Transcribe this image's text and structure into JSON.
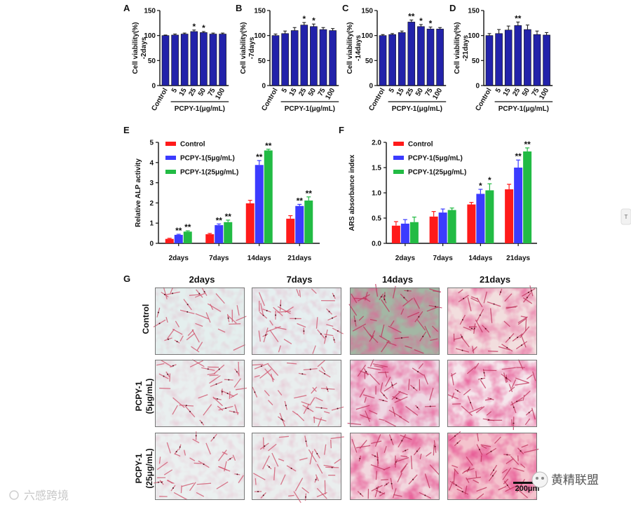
{
  "chart_data": [
    {
      "type": "bar",
      "panel_label": "A",
      "categories": [
        "Control",
        "5",
        "15",
        "25",
        "50",
        "75",
        "100"
      ],
      "values": [
        100,
        101,
        103,
        108,
        106,
        103,
        103
      ],
      "errors": [
        1,
        2,
        2,
        3,
        2,
        2,
        2
      ],
      "significance": [
        "",
        "",
        "",
        "*",
        "*",
        "",
        ""
      ],
      "ylabel": "Cell viability(%)\n-2days",
      "xlabel": "PCPY-1(μg/mL)",
      "ylim": [
        0,
        150
      ],
      "yticks": [
        "0",
        "50",
        "100",
        "150"
      ]
    },
    {
      "type": "bar",
      "panel_label": "B",
      "categories": [
        "Control",
        "5",
        "15",
        "25",
        "50",
        "75",
        "100"
      ],
      "values": [
        100,
        104,
        110,
        121,
        118,
        112,
        110
      ],
      "errors": [
        3,
        5,
        6,
        5,
        5,
        4,
        4
      ],
      "significance": [
        "",
        "",
        "",
        "*",
        "*",
        "",
        ""
      ],
      "ylabel": "Cell viability(%)\n-7days",
      "xlabel": "PCPY-1(μg/mL)",
      "ylim": [
        0,
        150
      ],
      "yticks": [
        "0",
        "50",
        "100",
        "150"
      ]
    },
    {
      "type": "bar",
      "panel_label": "C",
      "categories": [
        "Control",
        "5",
        "15",
        "25",
        "50",
        "75",
        "100"
      ],
      "values": [
        100,
        102,
        106,
        127,
        118,
        113,
        113
      ],
      "errors": [
        2,
        2,
        3,
        4,
        4,
        4,
        3
      ],
      "significance": [
        "",
        "",
        "",
        "**",
        "*",
        "*",
        ""
      ],
      "ylabel": "Cell viability(%)\n-14days",
      "xlabel": "PCPY-1(μg/mL)",
      "ylim": [
        0,
        150
      ],
      "yticks": [
        "0",
        "50",
        "100",
        "150"
      ]
    },
    {
      "type": "bar",
      "panel_label": "D",
      "categories": [
        "Control",
        "5",
        "15",
        "25",
        "50",
        "75",
        "100"
      ],
      "values": [
        100,
        104,
        111,
        120,
        112,
        102,
        101
      ],
      "errors": [
        4,
        8,
        8,
        7,
        9,
        7,
        5
      ],
      "significance": [
        "",
        "",
        "",
        "**",
        "",
        "",
        ""
      ],
      "ylabel": "Cell viability(%)\n-21days",
      "xlabel": "PCPY-1(μg/mL)",
      "ylim": [
        0,
        150
      ],
      "yticks": [
        "0",
        "50",
        "100",
        "150"
      ]
    },
    {
      "type": "bar",
      "panel_label": "E",
      "categories": [
        "2days",
        "7days",
        "14days",
        "21days"
      ],
      "series": [
        {
          "name": "Control",
          "color": "#ff1a1a",
          "values": [
            0.22,
            0.45,
            1.98,
            1.22
          ],
          "errors": [
            0.03,
            0.04,
            0.15,
            0.15
          ],
          "significance": [
            "",
            "",
            "",
            ""
          ]
        },
        {
          "name": "PCPY-1(5μg/mL)",
          "color": "#3b3bff",
          "values": [
            0.42,
            0.9,
            3.88,
            1.85
          ],
          "errors": [
            0.03,
            0.06,
            0.22,
            0.08
          ],
          "significance": [
            "**",
            "**",
            "**",
            "**"
          ]
        },
        {
          "name": "PCPY-1(25μg/mL)",
          "color": "#22bb44",
          "values": [
            0.58,
            1.05,
            4.6,
            2.12
          ],
          "errors": [
            0.04,
            0.1,
            0.06,
            0.18
          ],
          "significance": [
            "**",
            "**",
            "**",
            "**"
          ]
        }
      ],
      "ylabel": "Relative ALP activity",
      "ylim": [
        0,
        5
      ],
      "yticks": [
        "0",
        "1",
        "2",
        "3",
        "4",
        "5"
      ],
      "legend": "top-left"
    },
    {
      "type": "bar",
      "panel_label": "F",
      "categories": [
        "2days",
        "7days",
        "14days",
        "21days"
      ],
      "series": [
        {
          "name": "Control",
          "color": "#ff1a1a",
          "values": [
            0.35,
            0.53,
            0.77,
            1.07
          ],
          "errors": [
            0.08,
            0.1,
            0.04,
            0.1
          ],
          "significance": [
            "",
            "",
            "",
            ""
          ]
        },
        {
          "name": "PCPY-1(5μg/mL)",
          "color": "#3b3bff",
          "values": [
            0.39,
            0.61,
            0.98,
            1.5
          ],
          "errors": [
            0.08,
            0.07,
            0.09,
            0.15
          ],
          "significance": [
            "",
            "",
            "*",
            "**"
          ]
        },
        {
          "name": "PCPY-1(25μg/mL)",
          "color": "#22bb44",
          "values": [
            0.42,
            0.66,
            1.05,
            1.82
          ],
          "errors": [
            0.1,
            0.04,
            0.13,
            0.07
          ],
          "significance": [
            "",
            "",
            "*",
            "**"
          ]
        }
      ],
      "ylabel": "ARS absorbance index",
      "ylim": [
        0,
        2.0
      ],
      "yticks": [
        "0.0",
        "0.5",
        "1.0",
        "1.5",
        "2.0"
      ],
      "legend": "top-left"
    }
  ],
  "panel_g": {
    "label": "G",
    "columns": [
      "2days",
      "7days",
      "14days",
      "21days"
    ],
    "rows": [
      {
        "line1": "Control",
        "line2": ""
      },
      {
        "line1": "PCPY-1",
        "line2": "(5μg/mL)"
      },
      {
        "line1": "PCPY-1",
        "line2": "(25μg/mL)"
      }
    ],
    "scale_bar": "200μm"
  },
  "watermarks": {
    "left": "六感跨境",
    "right": "黄精联盟",
    "edge_tab": "T"
  },
  "colors": {
    "bar_main": "#2222aa",
    "control": "#ff1a1a",
    "pcpy5": "#3b3bff",
    "pcpy25": "#22bb44"
  }
}
